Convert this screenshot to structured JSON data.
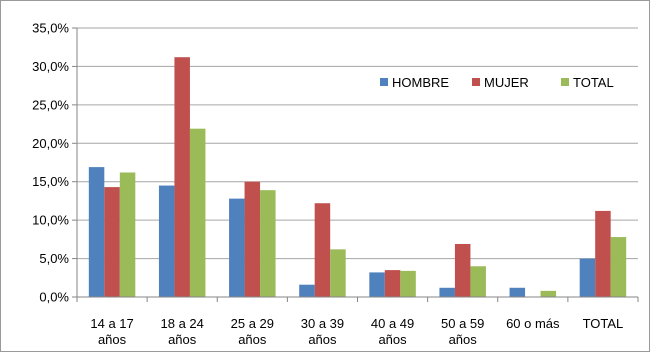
{
  "chart_data": {
    "type": "bar",
    "categories": [
      [
        "14 a 17",
        "años"
      ],
      [
        "18 a 24",
        "años"
      ],
      [
        "25 a 29",
        "años"
      ],
      [
        "30 a 39",
        "años"
      ],
      [
        "40 a 49",
        "años"
      ],
      [
        "50 a 59",
        "años"
      ],
      [
        "60 o más"
      ],
      [
        "TOTAL"
      ]
    ],
    "series": [
      {
        "name": "HOMBRE",
        "color": "#4f81bd",
        "values": [
          16.9,
          14.5,
          12.8,
          1.6,
          3.2,
          1.2,
          1.2,
          5.0
        ]
      },
      {
        "name": "MUJER",
        "color": "#c0504d",
        "values": [
          14.3,
          31.2,
          15.0,
          12.2,
          3.5,
          6.9,
          0.0,
          11.2
        ]
      },
      {
        "name": "TOTAL",
        "color": "#9bbb59",
        "values": [
          16.2,
          21.9,
          13.9,
          6.2,
          3.4,
          4.0,
          0.8,
          7.8
        ]
      }
    ],
    "ylim": [
      0,
      35
    ],
    "yticks": [
      "0,0%",
      "5,0%",
      "10,0%",
      "15,0%",
      "20,0%",
      "25,0%",
      "30,0%",
      "35,0%"
    ],
    "ytick_values": [
      0,
      5,
      10,
      15,
      20,
      25,
      30,
      35
    ],
    "grid": true,
    "legend_position": "top-right",
    "gridline_color": "#a6a6a6",
    "axis_color": "#868686"
  }
}
